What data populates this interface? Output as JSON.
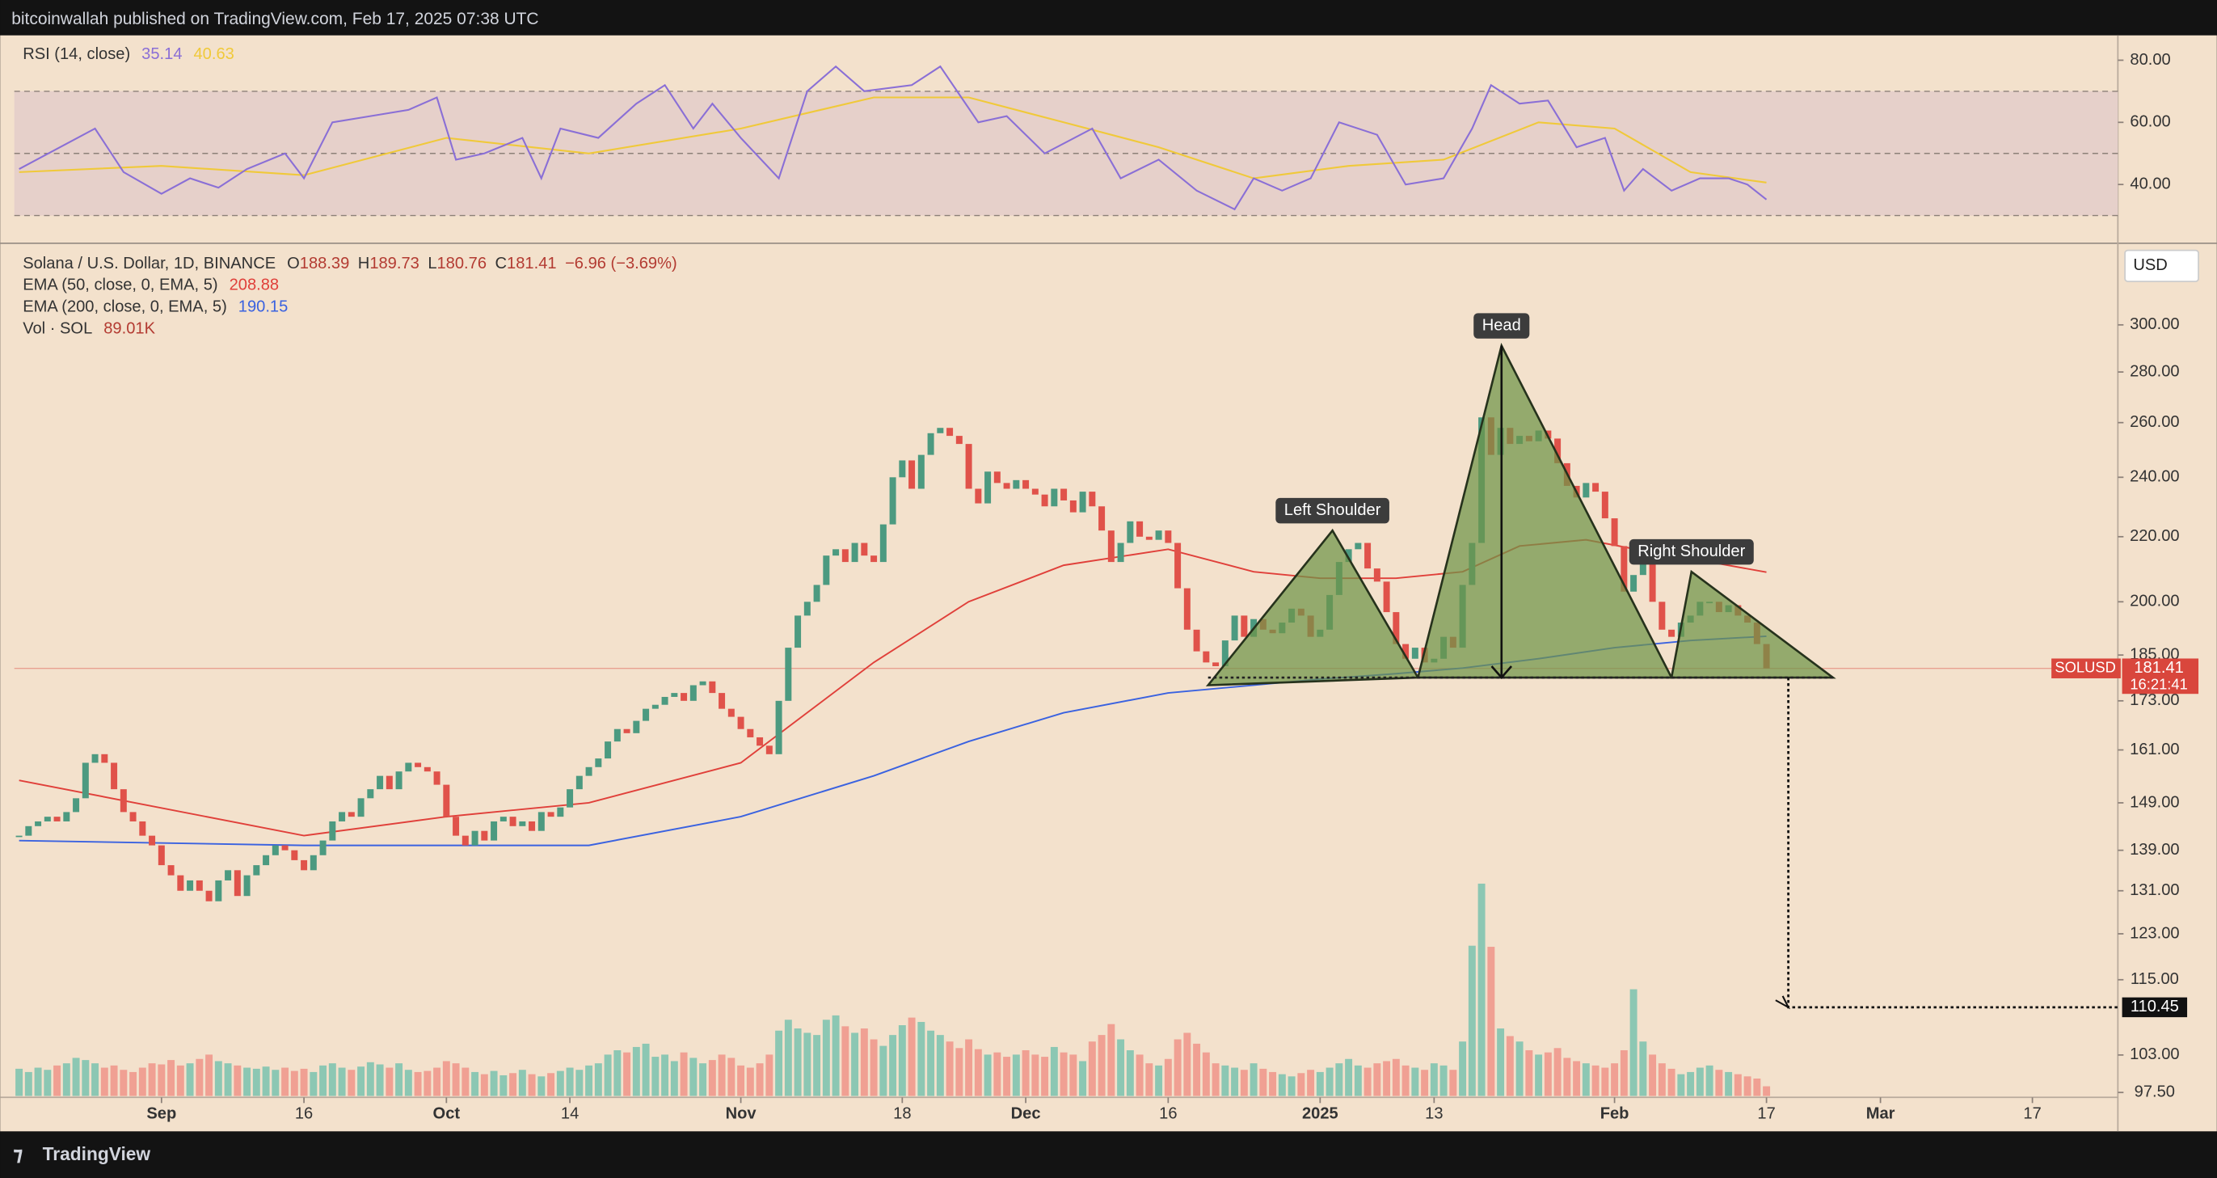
{
  "header": "bitcoinwallah published on TradingView.com, Feb 17, 2025 07:38 UTC",
  "footer": "TradingView",
  "chart_data": {
    "type": "candlestick",
    "title": "Solana / U.S. Dollar, 1D, BINANCE",
    "ohlc_legend": [
      {
        "key": "O",
        "value": "188.39"
      },
      {
        "key": "H",
        "value": "189.73"
      },
      {
        "key": "L",
        "value": "180.76"
      },
      {
        "key": "C",
        "value": "181.41"
      }
    ],
    "change": "−6.96 (−3.69%)",
    "currency": "USD",
    "symbol": "SOLUSD",
    "countdown": "16:21:41",
    "xlim": [
      -0.5,
      221
    ],
    "xticks": [
      {
        "value": 15,
        "label": "Sep"
      },
      {
        "value": 30,
        "label": "16"
      },
      {
        "value": 45,
        "label": "Oct"
      },
      {
        "value": 58,
        "label": "14"
      },
      {
        "value": 76,
        "label": "Nov"
      },
      {
        "value": 93,
        "label": "18"
      },
      {
        "value": 106,
        "label": "Dec"
      },
      {
        "value": 121,
        "label": "16"
      },
      {
        "value": 137,
        "label": "2025"
      },
      {
        "value": 149,
        "label": "13"
      },
      {
        "value": 168,
        "label": "Feb"
      },
      {
        "value": 184,
        "label": "17"
      },
      {
        "value": 196,
        "label": "Mar"
      },
      {
        "value": 212,
        "label": "17"
      }
    ],
    "ylim": [
      97,
      336
    ],
    "log_scale": true,
    "yticks": [
      {
        "value": 300,
        "label": "300.00"
      },
      {
        "value": 280,
        "label": "280.00"
      },
      {
        "value": 260,
        "label": "260.00"
      },
      {
        "value": 240,
        "label": "240.00"
      },
      {
        "value": 220,
        "label": "220.00"
      },
      {
        "value": 200,
        "label": "200.00"
      },
      {
        "value": 185,
        "label": "185.00"
      },
      {
        "value": 173,
        "label": "173.00"
      },
      {
        "value": 161,
        "label": "161.00"
      },
      {
        "value": 149,
        "label": "149.00"
      },
      {
        "value": 139,
        "label": "139.00"
      },
      {
        "value": 131,
        "label": "131.00"
      },
      {
        "value": 123,
        "label": "123.00"
      },
      {
        "value": 115,
        "label": "115.00"
      },
      {
        "value": 103,
        "label": "103.00"
      },
      {
        "value": 97.5,
        "label": "97.50"
      }
    ],
    "up_color": "#4c9a80",
    "down_color": "#e0524a",
    "close": [
      142,
      144,
      145,
      146,
      145,
      147,
      150,
      158,
      160,
      158,
      152,
      147,
      145,
      142,
      140,
      136,
      134,
      131,
      133,
      131,
      129,
      133,
      135,
      130,
      134,
      136,
      138,
      140,
      139,
      137,
      135,
      138,
      141,
      145,
      147,
      146,
      150,
      152,
      155,
      152,
      156,
      158,
      157,
      156,
      153,
      146,
      142,
      140,
      143,
      141,
      145,
      146,
      144,
      145,
      143,
      147,
      146,
      148,
      152,
      155,
      157,
      159,
      163,
      166,
      165,
      168,
      171,
      172,
      174,
      175,
      173,
      177,
      178,
      175,
      171,
      169,
      166,
      164,
      162,
      160,
      173,
      187,
      196,
      200,
      205,
      214,
      216,
      212,
      218,
      214,
      212,
      224,
      240,
      246,
      236,
      248,
      256,
      258,
      255,
      252,
      236,
      231,
      242,
      238,
      236,
      239,
      236,
      234,
      230,
      236,
      232,
      228,
      235,
      230,
      222,
      212,
      218,
      225,
      220,
      219,
      222,
      218,
      204,
      192,
      186,
      183,
      182,
      189,
      196,
      190,
      195,
      192,
      191,
      194,
      198,
      196,
      190,
      192,
      202,
      212,
      216,
      218,
      210,
      206,
      197,
      188,
      184,
      187,
      183,
      184,
      190,
      187,
      205,
      218,
      262,
      248,
      258,
      252,
      255,
      253,
      257,
      254,
      245,
      237,
      233,
      238,
      235,
      226,
      217,
      203,
      208,
      216,
      200,
      192,
      190,
      194,
      196,
      200,
      200,
      197,
      199,
      196,
      194,
      188,
      181.41
    ],
    "ema": [
      {
        "name": "EMA (50, close, 0, EMA, 5)",
        "color": "#e0403a",
        "x": [
          0,
          30,
          45,
          60,
          76,
          90,
          100,
          110,
          121,
          130,
          137,
          145,
          152,
          158,
          165,
          172,
          178,
          184
        ],
        "values": [
          154,
          142,
          146,
          149,
          158,
          183,
          200,
          211,
          216,
          209,
          207,
          207,
          209,
          217,
          219,
          215,
          212,
          208.88
        ],
        "value_label": "208.88"
      },
      {
        "name": "EMA (200, close, 0, EMA, 5)",
        "color": "#3a62e0",
        "x": [
          0,
          30,
          45,
          60,
          76,
          90,
          100,
          110,
          121,
          130,
          137,
          145,
          152,
          160,
          168,
          176,
          184
        ],
        "values": [
          141,
          140,
          140,
          140,
          146,
          155,
          163,
          170,
          175,
          177,
          178.6,
          180,
          181.5,
          184,
          187,
          189,
          190.15
        ],
        "value_label": "190.15"
      }
    ],
    "volume": {
      "name": "Vol · SOL",
      "value_label": "89.01K",
      "up_color": "#8cc7b3",
      "down_color": "#f0a093",
      "values": [
        250,
        220,
        260,
        240,
        280,
        300,
        350,
        330,
        300,
        260,
        280,
        240,
        220,
        260,
        300,
        290,
        330,
        280,
        300,
        340,
        380,
        320,
        300,
        280,
        260,
        250,
        270,
        240,
        260,
        230,
        250,
        220,
        280,
        300,
        260,
        240,
        270,
        310,
        290,
        260,
        300,
        240,
        220,
        230,
        260,
        320,
        300,
        260,
        220,
        200,
        230,
        190,
        210,
        240,
        200,
        180,
        210,
        230,
        260,
        240,
        280,
        300,
        380,
        420,
        400,
        450,
        480,
        360,
        380,
        320,
        400,
        350,
        300,
        330,
        380,
        350,
        280,
        260,
        300,
        380,
        600,
        700,
        620,
        580,
        560,
        700,
        740,
        640,
        580,
        620,
        520,
        460,
        560,
        650,
        720,
        680,
        600,
        560,
        500,
        440,
        520,
        430,
        380,
        400,
        360,
        380,
        420,
        380,
        360,
        450,
        400,
        380,
        320,
        500,
        560,
        660,
        520,
        420,
        380,
        300,
        280,
        340,
        520,
        580,
        480,
        400,
        300,
        280,
        260,
        240,
        300,
        250,
        220,
        200,
        180,
        210,
        240,
        220,
        260,
        300,
        340,
        280,
        260,
        300,
        320,
        340,
        280,
        260,
        240,
        300,
        280,
        240,
        500,
        1380,
        1950,
        1370,
        620,
        550,
        500,
        420,
        380,
        400,
        440,
        350,
        320,
        300,
        280,
        260,
        300,
        420,
        980,
        500,
        380,
        300,
        250,
        200,
        220,
        260,
        280,
        240,
        220,
        200,
        180,
        160,
        89.01
      ]
    },
    "rsi": {
      "name": "RSI (14, close)",
      "ylim": [
        22,
        88
      ],
      "yticks": [
        {
          "value": 80,
          "label": "80.00"
        },
        {
          "value": 60,
          "label": "60.00"
        },
        {
          "value": 40,
          "label": "40.00"
        }
      ],
      "band": [
        30,
        70
      ],
      "midline": 50,
      "series": [
        {
          "color": "#8a6fd6",
          "x": [
            0,
            8,
            11,
            15,
            18,
            21,
            24,
            28,
            30,
            33,
            37,
            41,
            44,
            46,
            49,
            53,
            55,
            57,
            61,
            65,
            68,
            71,
            73,
            76,
            80,
            83,
            86,
            89,
            94,
            97,
            101,
            104,
            108,
            113,
            116,
            120,
            124,
            128,
            130,
            133,
            136,
            139,
            143,
            146,
            150,
            153,
            155,
            158,
            161,
            164,
            167,
            169,
            171,
            174,
            177,
            180,
            182,
            184
          ],
          "values": [
            45,
            58,
            44,
            37,
            42,
            39,
            45,
            50,
            42,
            60,
            62,
            64,
            68,
            48,
            50,
            55,
            42,
            58,
            55,
            66,
            72,
            58,
            66,
            55,
            42,
            70,
            78,
            70,
            72,
            78,
            60,
            62,
            50,
            58,
            42,
            48,
            38,
            32,
            42,
            38,
            42,
            60,
            56,
            40,
            42,
            58,
            72,
            66,
            67,
            52,
            55,
            38,
            45,
            38,
            42,
            42,
            40,
            35.14
          ],
          "value_label": "35.14"
        },
        {
          "color": "#f0c93a",
          "x": [
            0,
            15,
            30,
            45,
            60,
            76,
            90,
            100,
            110,
            120,
            130,
            140,
            150,
            160,
            168,
            176,
            184
          ],
          "values": [
            44,
            46,
            43,
            55,
            50,
            58,
            68,
            68,
            60,
            52,
            42,
            46,
            48,
            60,
            58,
            44,
            40.63
          ],
          "value_label": "40.63"
        }
      ]
    },
    "patterns": [
      {
        "label": "Left Shoulder",
        "points": [
          [
            125.2,
            177
          ],
          [
            138.3,
            222
          ],
          [
            147.3,
            179
          ]
        ]
      },
      {
        "label": "Head",
        "points": [
          [
            147.3,
            179
          ],
          [
            156.1,
            291
          ],
          [
            174,
            179
          ]
        ]
      },
      {
        "label": "Right Shoulder",
        "points": [
          [
            174,
            179
          ],
          [
            176.1,
            209
          ],
          [
            191,
            179
          ]
        ]
      }
    ],
    "neckline": 179,
    "target": {
      "value": 110.45,
      "x": 186.3
    }
  }
}
